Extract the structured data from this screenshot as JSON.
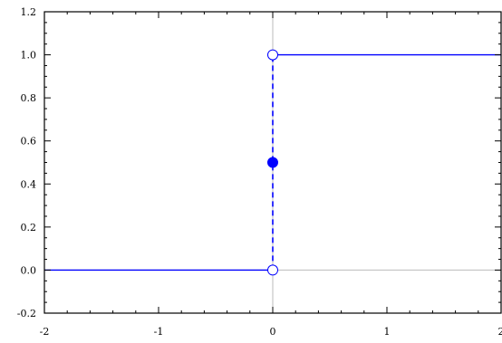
{
  "chart_data": {
    "type": "line",
    "title": "",
    "xlabel": "",
    "ylabel": "",
    "xlim": [
      -2,
      2
    ],
    "ylim": [
      -0.2,
      1.2
    ],
    "x_ticks": [
      -2,
      -1,
      0,
      1,
      2
    ],
    "x_tick_labels": [
      "-2",
      "-1",
      "0",
      "1",
      "2"
    ],
    "y_ticks": [
      -0.2,
      0.0,
      0.2,
      0.4,
      0.6,
      0.8,
      1.0,
      1.2
    ],
    "y_tick_labels": [
      "-0.2",
      "0.0",
      "0.2",
      "0.4",
      "0.6",
      "0.8",
      "1.0",
      "1.2"
    ],
    "grid": false,
    "zero_axes": true,
    "series": [
      {
        "kind": "step-function",
        "segments": [
          {
            "x": [
              -2,
              0
            ],
            "y": [
              0,
              0
            ]
          },
          {
            "x": [
              0,
              2
            ],
            "y": [
              1,
              1
            ]
          }
        ],
        "jump": {
          "x": 0,
          "y": [
            0,
            1
          ],
          "style": "dashed"
        },
        "open_points": [
          {
            "x": 0,
            "y": 0
          },
          {
            "x": 0,
            "y": 1
          }
        ],
        "closed_points": [
          {
            "x": 0,
            "y": 0.5
          }
        ]
      }
    ],
    "colors": {
      "series": "#0000ff",
      "axes_zero": "#bbbbbb",
      "frame": "#000000"
    }
  }
}
